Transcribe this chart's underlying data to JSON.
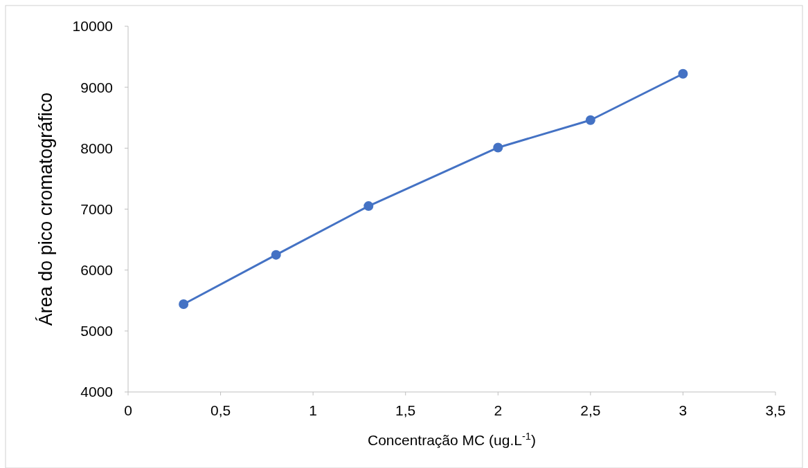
{
  "chart_data": {
    "type": "line",
    "xlabel": "Concentração MC (ug.L$^{-1}$)",
    "ylabel": "Área do pico cromatográfico",
    "x": [
      0.3,
      0.8,
      1.3,
      2,
      2.5,
      3
    ],
    "series": [
      {
        "color": "#4472c4",
        "values": [
          5440,
          6250,
          7050,
          8010,
          8460,
          9220
        ]
      }
    ],
    "xlim": [
      0,
      3.5
    ],
    "xticks": [
      0,
      {
        "value": 0.5,
        "label": "0,5"
      },
      1,
      {
        "value": 1.5,
        "label": "1,5"
      },
      2,
      {
        "value": 2.5,
        "label": "2,5"
      },
      3,
      {
        "value": 3.5,
        "label": "3,5"
      }
    ],
    "ylim": [
      4000,
      10000
    ],
    "yticks": [
      4000,
      5000,
      6000,
      7000,
      8000,
      9000,
      10000
    ],
    "marker": "circle",
    "line_style": "solid"
  }
}
